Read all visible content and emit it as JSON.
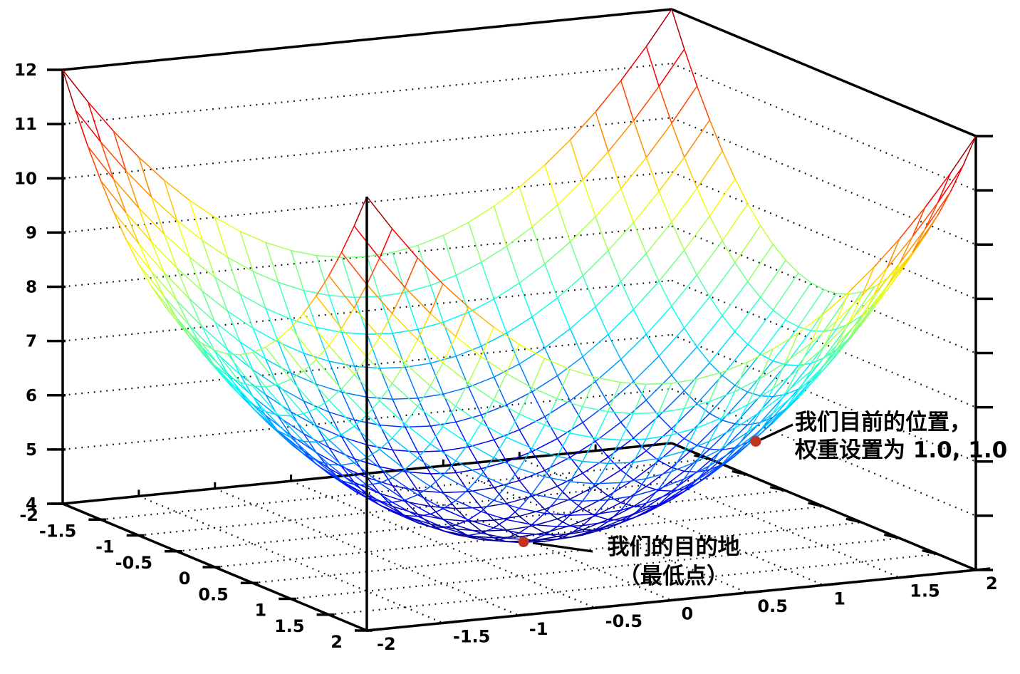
{
  "figure": {
    "description": "3D wireframe surface plot of a loss bowl used to illustrate gradient descent",
    "background": "#ffffff"
  },
  "chart_data": {
    "type": "surface-wireframe",
    "surface_function": "z = x^2 + y^2 + 4",
    "colormap": "jet",
    "grid": "dotted",
    "mesh": {
      "divisions": 24
    },
    "x_axis": {
      "range": [
        -2,
        2
      ],
      "ticks": [
        "-2",
        "-1.5",
        "-1",
        "-0.5",
        "0",
        "0.5",
        "1",
        "1.5",
        "2"
      ]
    },
    "y_axis": {
      "range": [
        -2,
        2
      ],
      "ticks": [
        "-2",
        "-1.5",
        "-1",
        "-0.5",
        "0",
        "0.5",
        "1",
        "1.5",
        "2"
      ]
    },
    "z_axis": {
      "range": [
        4,
        12
      ],
      "ticks": [
        "4",
        "5",
        "6",
        "7",
        "8",
        "9",
        "10",
        "11",
        "12"
      ]
    },
    "points": [
      {
        "name": "current-position",
        "x": 1,
        "y": 1,
        "z": 6
      },
      {
        "name": "destination-minimum",
        "x": 0,
        "y": 0,
        "z": 4
      }
    ],
    "annotations": [
      {
        "line1": "我们目前的位置，",
        "line2": "权重设置为 1.0, 1.0"
      },
      {
        "line1": "我们的目的地",
        "line2": "（最低点）"
      }
    ],
    "colors": {
      "axis": "#000000",
      "grid_dots": "#111111",
      "point": "#c0351f",
      "text": "#000000",
      "jet_low": "#000080",
      "jet_high": "#800000"
    }
  }
}
